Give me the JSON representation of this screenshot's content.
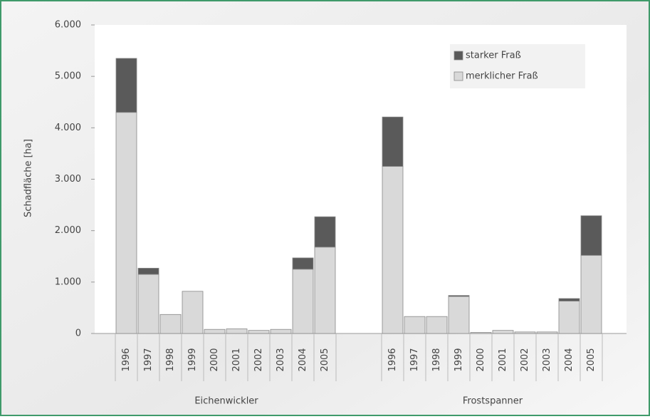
{
  "chart_data": {
    "type": "bar",
    "stacked": true,
    "y_label": "Schadfläche [ha]",
    "groups": [
      "Eichenwickler",
      "Frostspanner"
    ],
    "categories": [
      [
        "1996",
        "1997",
        "1998",
        "1999",
        "2000",
        "2001",
        "2002",
        "2003",
        "2004",
        "2005"
      ],
      [
        "1996",
        "1997",
        "1998",
        "1999",
        "2000",
        "2001",
        "2002",
        "2003",
        "2004",
        "2005"
      ]
    ],
    "series": [
      {
        "name": "merklicher Fraß",
        "color": "#d9d9d9",
        "values": [
          [
            4300,
            1150,
            370,
            820,
            80,
            90,
            60,
            80,
            1250,
            1680
          ],
          [
            3250,
            330,
            330,
            720,
            20,
            60,
            30,
            30,
            630,
            1520
          ]
        ]
      },
      {
        "name": "starker Fraß",
        "color": "#5a5a5a",
        "values": [
          [
            1050,
            120,
            0,
            0,
            0,
            0,
            0,
            0,
            220,
            590
          ],
          [
            960,
            0,
            0,
            20,
            0,
            0,
            0,
            0,
            50,
            770
          ]
        ]
      }
    ],
    "ylim": [
      0,
      6000
    ],
    "yticks": [
      0,
      {
        "value": 1000,
        "label": "1.000"
      },
      {
        "value": 2000,
        "label": "2.000"
      },
      {
        "value": 3000,
        "label": "3.000"
      },
      {
        "value": 4000,
        "label": "4.000"
      },
      {
        "value": 5000,
        "label": "5.000"
      },
      {
        "value": 6000,
        "label": "6.000"
      }
    ],
    "legend": "top-right"
  }
}
